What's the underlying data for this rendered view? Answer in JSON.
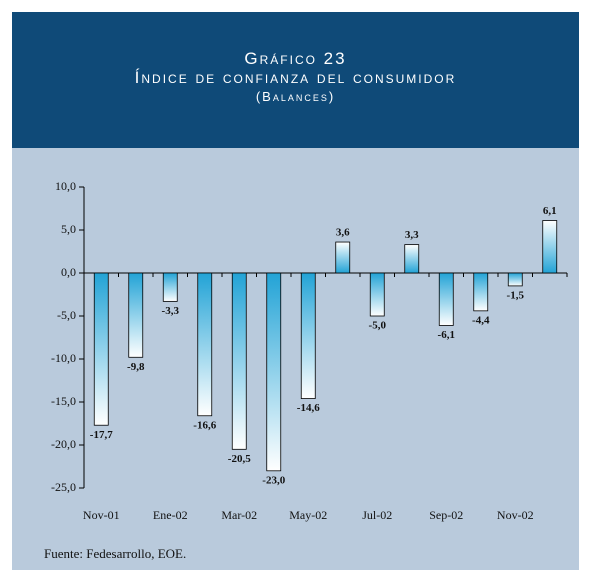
{
  "header": {
    "title": "Gráfico 23",
    "subtitle": "Índice de confianza del consumidor",
    "note": "(Balances)"
  },
  "chart_data": {
    "type": "bar",
    "categories": [
      "Nov-01",
      null,
      "Ene-02",
      null,
      "Mar-02",
      null,
      "May-02",
      null,
      "Jul-02",
      null,
      "Sep-02",
      null,
      "Nov-02",
      null
    ],
    "values": [
      -17.7,
      -9.8,
      -3.3,
      -16.6,
      -20.5,
      -23.0,
      -14.6,
      3.6,
      -5.0,
      3.3,
      -6.1,
      -4.4,
      -1.5,
      6.1
    ],
    "value_labels": [
      "-17,7",
      "-9,8",
      "-3,3",
      "-16,6",
      "-20,5",
      "-23,0",
      "-14,6",
      "3,6",
      "-5,0",
      "3,3",
      "-6,1",
      "-4,4",
      "-1,5",
      "6,1"
    ],
    "ylim": [
      -25,
      10
    ],
    "yticks": [
      {
        "value": -25,
        "label": "-25,0"
      },
      {
        "value": -20,
        "label": "-20,0"
      },
      {
        "value": -15,
        "label": "-15,0"
      },
      {
        "value": -10,
        "label": "-10,0"
      },
      {
        "value": -5,
        "label": "-5,0"
      },
      {
        "value": 0,
        "label": "0,0"
      },
      {
        "value": 5,
        "label": "5,0"
      },
      {
        "value": 10,
        "label": "10,0"
      }
    ],
    "color": "#2aa8d8"
  },
  "footer": {
    "source": "Fuente: Fedesarrollo, EOE."
  }
}
